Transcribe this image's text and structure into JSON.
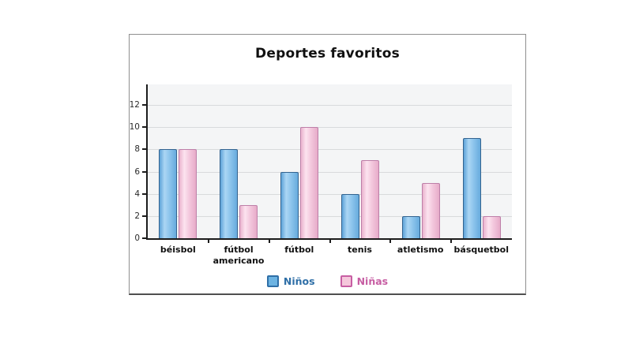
{
  "chart_data": {
    "type": "bar",
    "title": "Deportes favoritos",
    "categories": [
      "béisbol",
      "fútbol americano",
      "fútbol",
      "tenis",
      "atletismo",
      "básquetbol"
    ],
    "series": [
      {
        "name": "Niños",
        "values": [
          8,
          8,
          6,
          4,
          2,
          9
        ],
        "bar_border": "#33638f",
        "bar_gradient": [
          "#5ea3d8",
          "#abd6f4",
          "#8cc4ec",
          "#67abdd"
        ],
        "legend_color": "#2f6fa7",
        "swatch_fill": "#6cb3e2"
      },
      {
        "name": "Niñas",
        "values": [
          8,
          3,
          10,
          7,
          5,
          2
        ],
        "bar_border": "#bd7fa8",
        "bar_gradient": [
          "#eab2ce",
          "#fce3ef",
          "#f3c8dd",
          "#e7abc9"
        ],
        "legend_color": "#c75ea3",
        "swatch_fill": "#f5c7db"
      }
    ],
    "y_ticks": [
      0,
      2,
      4,
      6,
      8,
      10,
      12
    ],
    "ylim": [
      0,
      13.85
    ],
    "grid": true,
    "legend_position": "bottom",
    "colors": {
      "plot_bg": "#f4f5f6",
      "gridline": "#d8dadc",
      "axis": "#1c1c1c",
      "panel_border": "#8f8f8f",
      "text": "#111111"
    }
  }
}
